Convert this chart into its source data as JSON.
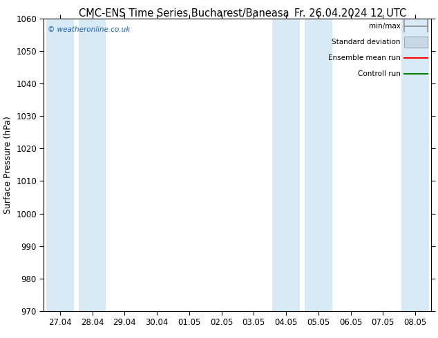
{
  "title_left": "CMC-ENS Time Series Bucharest/Baneasa",
  "title_right": "Fr. 26.04.2024 12 UTC",
  "ylabel": "Surface Pressure (hPa)",
  "ylim": [
    970,
    1060
  ],
  "yticks": [
    970,
    980,
    990,
    1000,
    1010,
    1020,
    1030,
    1040,
    1050,
    1060
  ],
  "xtick_labels": [
    "27.04",
    "28.04",
    "29.04",
    "30.04",
    "01.05",
    "02.05",
    "03.05",
    "04.05",
    "05.05",
    "06.05",
    "07.05",
    "08.05"
  ],
  "shaded_band_indices": [
    0,
    1,
    7,
    8,
    11
  ],
  "watermark": "© weatheronline.co.uk",
  "legend_items": [
    {
      "label": "min/max",
      "color": "#909090",
      "type": "minmax"
    },
    {
      "label": "Standard deviation",
      "color": "#c0d0dc",
      "type": "stddev"
    },
    {
      "label": "Ensemble mean run",
      "color": "red",
      "type": "line"
    },
    {
      "label": "Controll run",
      "color": "green",
      "type": "line"
    }
  ],
  "bg_color": "#ffffff",
  "plot_bg_color": "#ffffff",
  "band_color": "#d8eaf6",
  "title_fontsize": 10.5,
  "ylabel_fontsize": 9,
  "tick_fontsize": 8.5,
  "legend_fontsize": 7.5
}
